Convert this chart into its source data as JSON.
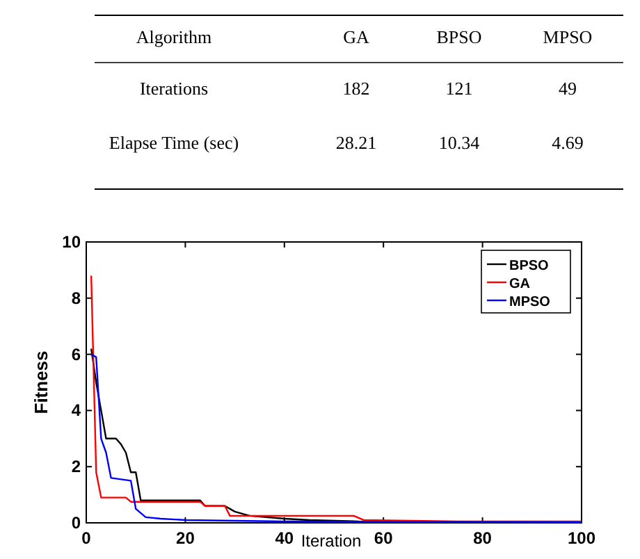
{
  "chart_data": [
    {
      "type": "other",
      "xlabel": "Algorithm",
      "data_labels": true,
      "categories": [
        "GA",
        "BPSO",
        "MPSO"
      ],
      "series": [
        {
          "name": "Iterations",
          "values": [
            182,
            121,
            49
          ]
        },
        {
          "name": "Elapse Time (sec)",
          "values": [
            28.21,
            10.34,
            4.69
          ]
        }
      ]
    },
    {
      "type": "line",
      "xlabel": "Iteration",
      "ylabel": "Fitness",
      "xlim": [
        0,
        100
      ],
      "ylim": [
        0,
        10
      ],
      "xticks": [
        0,
        20,
        40,
        60,
        80,
        100
      ],
      "yticks": [
        0,
        2,
        4,
        6,
        8,
        10
      ],
      "legend": "top right",
      "grid": false,
      "marker": "none",
      "line_style": "solid",
      "series": [
        {
          "name": "BPSO",
          "color": "#000000",
          "x": [
            1,
            2,
            3,
            4,
            6,
            7,
            8,
            9,
            10,
            11,
            23,
            24,
            28,
            30,
            33,
            40,
            45,
            55,
            100
          ],
          "values": [
            6.2,
            5,
            4,
            3,
            3,
            2.8,
            2.5,
            1.8,
            1.8,
            0.8,
            0.8,
            0.6,
            0.6,
            0.4,
            0.25,
            0.15,
            0.1,
            0.05,
            0.02
          ]
        },
        {
          "name": "GA",
          "color": "#ff0000",
          "x": [
            1,
            2,
            3,
            8,
            9,
            23,
            24,
            28,
            29,
            54,
            56,
            75,
            100
          ],
          "values": [
            8.8,
            1.8,
            0.9,
            0.9,
            0.75,
            0.75,
            0.6,
            0.6,
            0.25,
            0.25,
            0.1,
            0.05,
            0.05
          ]
        },
        {
          "name": "MPSO",
          "color": "#0000ff",
          "x": [
            1,
            2,
            3,
            4,
            5,
            9,
            10,
            12,
            15,
            20,
            40,
            100
          ],
          "values": [
            6,
            5.9,
            3,
            2.5,
            1.6,
            1.5,
            0.5,
            0.2,
            0.15,
            0.1,
            0.05,
            0.02
          ]
        }
      ]
    }
  ]
}
